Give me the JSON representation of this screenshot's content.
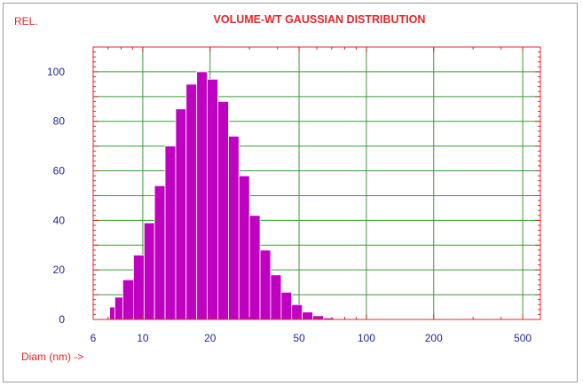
{
  "chart_data": {
    "type": "bar",
    "title": "VOLUME-WT GAUSSIAN DISTRIBUTION",
    "ylabel": "REL.",
    "xlabel": "Diam (nm) ->",
    "x_scale": "log",
    "xlim": [
      6,
      600
    ],
    "ylim": [
      0,
      110
    ],
    "x_ticks": [
      {
        "value": 6,
        "label": "6"
      },
      {
        "value": 10,
        "label": "10"
      },
      {
        "value": 20,
        "label": "20"
      },
      {
        "value": 50,
        "label": "50"
      },
      {
        "value": 100,
        "label": "100"
      },
      {
        "value": 200,
        "label": "200"
      },
      {
        "value": 500,
        "label": "500"
      }
    ],
    "y_ticks": [
      {
        "value": 0,
        "label": "0"
      },
      {
        "value": 20,
        "label": "20"
      },
      {
        "value": 40,
        "label": "40"
      },
      {
        "value": 60,
        "label": "60"
      },
      {
        "value": 80,
        "label": "80"
      },
      {
        "value": 100,
        "label": "100"
      }
    ],
    "grid": true,
    "categories": [
      7.3,
      7.7,
      8.6,
      9.6,
      10.7,
      11.9,
      13.3,
      14.8,
      16.5,
      18.4,
      20.5,
      22.9,
      25.5,
      28.4,
      31.7,
      35.3,
      39.4,
      43.9,
      48.9,
      54.5,
      60.8,
      67.8,
      75.6,
      84.2,
      93.9,
      104.7,
      116.7,
      130.1,
      145.0,
      161.6,
      180.2,
      200.9,
      224.0,
      249.6,
      278.3,
      310.3,
      345.9,
      385.6,
      429.8,
      479.2,
      534.2
    ],
    "values": [
      5,
      9,
      16,
      26,
      39,
      54,
      70,
      85,
      95,
      100,
      97,
      88,
      74,
      58,
      42,
      28,
      18,
      11,
      6,
      3,
      1.5,
      0.6,
      0.2,
      0.1,
      0.05,
      0.03,
      0.02,
      0.02,
      0.01,
      0.01,
      0.01,
      0.01,
      0.01,
      0.01,
      0.01,
      0.01,
      0.01,
      0.01,
      0.01,
      0.01,
      0.01
    ],
    "colors": {
      "bar_fill": "#c000c0",
      "bar_edge": "#ffffff",
      "grid": "#3a9a3a",
      "axis_frame": "#e3262a",
      "title": "#e3262a",
      "tick_labels": "#22269a",
      "axis_labels": "#e3262a"
    }
  }
}
